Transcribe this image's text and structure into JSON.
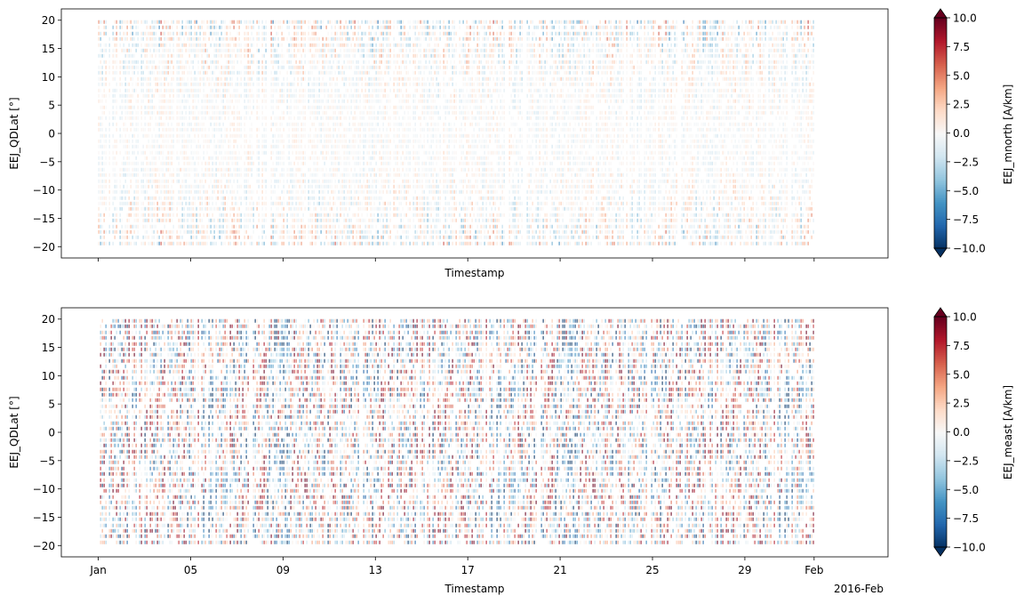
{
  "chart_data": [
    {
      "type": "heatmap",
      "title": "",
      "xlabel": "Timestamp",
      "ylabel": "EEJ_QDLat [°]",
      "colorbar_label": "EEJ_mnorth [A/km]",
      "colormap": "RdBu_r",
      "clim": [
        -10.0,
        10.0
      ],
      "colorbar_ticks": [
        "10.0",
        "7.5",
        "5.0",
        "2.5",
        "0.0",
        "−2.5",
        "−5.0",
        "−7.5",
        "−10.0"
      ],
      "colorbar_tick_values": [
        10,
        7.5,
        5,
        2.5,
        0,
        -2.5,
        -5,
        -7.5,
        -10
      ],
      "x_range_days": [
        -1.6,
        34.2
      ],
      "data_x_range_days": [
        0,
        31
      ],
      "ylim": [
        -22,
        22
      ],
      "data_y_range": [
        -20,
        20
      ],
      "yticks": [
        20,
        15,
        10,
        5,
        0,
        -5,
        -10,
        -15,
        -20
      ],
      "ytick_labels": [
        "20",
        "15",
        "10",
        "5",
        "0",
        "−5",
        "−10",
        "−15",
        "−20"
      ],
      "xticks_days": [
        0,
        4,
        8,
        12,
        16,
        20,
        24,
        28,
        31
      ],
      "xtick_labels_shown": false,
      "amplitude_note": "weak signal, mostly near zero (light colors) with sparse strong values at high |lat|",
      "amplitude": 0.45
    },
    {
      "type": "heatmap",
      "title": "",
      "xlabel": "Timestamp",
      "ylabel": "EEJ_QDLat [°]",
      "colorbar_label": "EEJ_meast [A/km]",
      "colormap": "RdBu_r",
      "clim": [
        -10.0,
        10.0
      ],
      "colorbar_ticks": [
        "10.0",
        "7.5",
        "5.0",
        "2.5",
        "0.0",
        "−2.5",
        "−5.0",
        "−7.5",
        "−10.0"
      ],
      "colorbar_tick_values": [
        10,
        7.5,
        5,
        2.5,
        0,
        -2.5,
        -5,
        -7.5,
        -10
      ],
      "x_range_days": [
        -1.6,
        34.2
      ],
      "data_x_range_days": [
        0,
        31
      ],
      "ylim": [
        -22,
        22
      ],
      "data_y_range": [
        -20,
        20
      ],
      "yticks": [
        20,
        15,
        10,
        5,
        0,
        -5,
        -10,
        -15,
        -20
      ],
      "ytick_labels": [
        "20",
        "15",
        "10",
        "5",
        "0",
        "−5",
        "−10",
        "−15",
        "−20"
      ],
      "xticks_days": [
        0,
        4,
        8,
        12,
        16,
        20,
        24,
        28,
        31
      ],
      "xtick_labels": [
        "Jan",
        "05",
        "09",
        "13",
        "17",
        "21",
        "25",
        "29",
        "Feb"
      ],
      "x_offset_label": "2016-Feb",
      "xtick_labels_shown": true,
      "amplitude_note": "strong signal, saturated reds and blues across the full range",
      "amplitude": 1.0
    }
  ]
}
